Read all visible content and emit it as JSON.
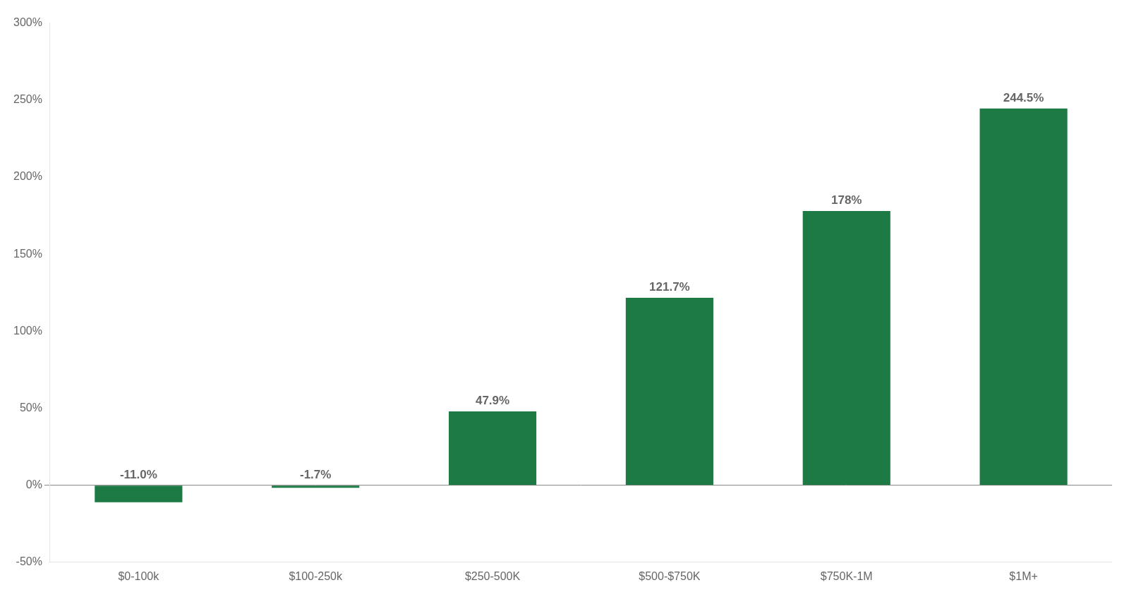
{
  "chart_data": {
    "type": "bar",
    "categories": [
      "$0-100k",
      "$100-250k",
      "$250-500K",
      "$500-$750K",
      "$750K-1M",
      "$1M+"
    ],
    "values": [
      -11.0,
      -1.7,
      47.9,
      121.7,
      178.0,
      244.5
    ],
    "value_labels": [
      "-11.0%",
      "-1.7%",
      "47.9%",
      "121.7%",
      "178%",
      "244.5%"
    ],
    "color": "#1e7a45",
    "ylim": [
      -50,
      300
    ],
    "yticks": [
      {
        "value": -50,
        "label": "-50%"
      },
      {
        "value": 0,
        "label": "0%"
      },
      {
        "value": 50,
        "label": "50%"
      },
      {
        "value": 100,
        "label": "100%"
      },
      {
        "value": 150,
        "label": "150%"
      },
      {
        "value": 200,
        "label": "200%"
      },
      {
        "value": 250,
        "label": "250%"
      },
      {
        "value": 300,
        "label": "300%"
      }
    ],
    "grid": false,
    "data_labels": true
  }
}
